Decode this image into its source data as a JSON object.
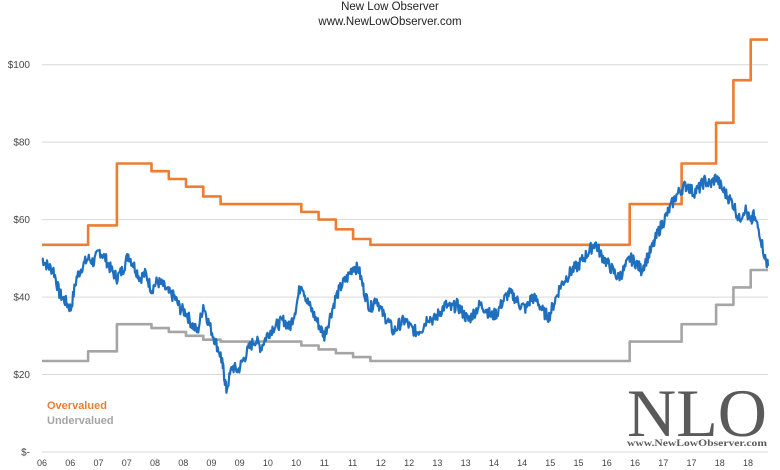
{
  "header": {
    "title": "New Low Observer",
    "subtitle": "www.NewLowObserver.com"
  },
  "watermark": {
    "logo_text": "NLO",
    "url_text": "www.NewLowObserver.com"
  },
  "colors": {
    "price": "#1f6fbf",
    "overvalued": "#ed7d31",
    "undervalued": "#a5a5a5",
    "grid": "#d9d9d9"
  },
  "chart_data": {
    "type": "line",
    "title": "New Low Observer",
    "subtitle": "www.NewLowObserver.com",
    "xlabel": "",
    "ylabel": "",
    "ylim": [
      0,
      110
    ],
    "yticks": [
      {
        "value": 0,
        "label": "$-"
      },
      {
        "value": 20,
        "label": "$20"
      },
      {
        "value": 40,
        "label": "$40"
      },
      {
        "value": 60,
        "label": "$60"
      },
      {
        "value": 80,
        "label": "$80"
      },
      {
        "value": 100,
        "label": "$100"
      }
    ],
    "xlim": [
      2006.0,
      2018.6
    ],
    "xtick_labels": [
      "06",
      "06",
      "07",
      "07",
      "08",
      "08",
      "09",
      "09",
      "10",
      "10",
      "11",
      "11",
      "12",
      "12",
      "13",
      "13",
      "14",
      "14",
      "15",
      "15",
      "16",
      "16",
      "17",
      "17",
      "18",
      "18"
    ],
    "grid": "horizontal",
    "legend_position": "bottom-left",
    "series": [
      {
        "name": "Overvalued",
        "style": "step",
        "points": [
          [
            2006.0,
            53.5
          ],
          [
            2006.8,
            58.5
          ],
          [
            2007.3,
            74.5
          ],
          [
            2007.9,
            72.5
          ],
          [
            2008.2,
            70.5
          ],
          [
            2008.5,
            68.5
          ],
          [
            2008.8,
            66.0
          ],
          [
            2009.1,
            64.0
          ],
          [
            2010.5,
            62.0
          ],
          [
            2010.8,
            60.0
          ],
          [
            2011.1,
            57.5
          ],
          [
            2011.4,
            55.0
          ],
          [
            2011.7,
            53.5
          ],
          [
            2014.5,
            53.5
          ],
          [
            2016.2,
            64.0
          ],
          [
            2017.1,
            74.5
          ],
          [
            2017.7,
            85.0
          ],
          [
            2018.0,
            96.0
          ],
          [
            2018.3,
            106.5
          ],
          [
            2018.6,
            106.5
          ]
        ]
      },
      {
        "name": "Undervalued",
        "style": "step",
        "points": [
          [
            2006.0,
            23.5
          ],
          [
            2006.8,
            26.0
          ],
          [
            2007.3,
            33.0
          ],
          [
            2007.9,
            32.0
          ],
          [
            2008.2,
            31.0
          ],
          [
            2008.5,
            30.0
          ],
          [
            2008.8,
            29.0
          ],
          [
            2009.1,
            28.5
          ],
          [
            2010.5,
            27.5
          ],
          [
            2010.8,
            26.5
          ],
          [
            2011.1,
            25.5
          ],
          [
            2011.4,
            24.5
          ],
          [
            2011.7,
            23.5
          ],
          [
            2014.5,
            23.5
          ],
          [
            2016.2,
            28.5
          ],
          [
            2017.1,
            33.0
          ],
          [
            2017.7,
            38.0
          ],
          [
            2018.0,
            42.5
          ],
          [
            2018.3,
            47.0
          ],
          [
            2018.6,
            47.0
          ]
        ]
      },
      {
        "name": "",
        "style": "line",
        "points": [
          [
            2006.0,
            50
          ],
          [
            2006.1,
            48
          ],
          [
            2006.2,
            47
          ],
          [
            2006.3,
            41
          ],
          [
            2006.4,
            39
          ],
          [
            2006.5,
            37
          ],
          [
            2006.6,
            45
          ],
          [
            2006.7,
            48
          ],
          [
            2006.8,
            50
          ],
          [
            2006.9,
            49
          ],
          [
            2007.0,
            52
          ],
          [
            2007.1,
            50
          ],
          [
            2007.2,
            47
          ],
          [
            2007.3,
            45
          ],
          [
            2007.4,
            47
          ],
          [
            2007.5,
            51
          ],
          [
            2007.6,
            48
          ],
          [
            2007.7,
            45
          ],
          [
            2007.8,
            46
          ],
          [
            2007.9,
            42
          ],
          [
            2008.0,
            44
          ],
          [
            2008.1,
            43
          ],
          [
            2008.2,
            41
          ],
          [
            2008.3,
            40
          ],
          [
            2008.4,
            37
          ],
          [
            2008.5,
            36
          ],
          [
            2008.6,
            33
          ],
          [
            2008.7,
            31
          ],
          [
            2008.8,
            38
          ],
          [
            2008.9,
            33
          ],
          [
            2009.0,
            29
          ],
          [
            2009.1,
            25
          ],
          [
            2009.15,
            21
          ],
          [
            2009.2,
            16
          ],
          [
            2009.3,
            22
          ],
          [
            2009.4,
            21
          ],
          [
            2009.5,
            24
          ],
          [
            2009.6,
            27
          ],
          [
            2009.7,
            29
          ],
          [
            2009.8,
            27
          ],
          [
            2009.9,
            30
          ],
          [
            2010.0,
            32
          ],
          [
            2010.1,
            33
          ],
          [
            2010.2,
            34
          ],
          [
            2010.3,
            32
          ],
          [
            2010.4,
            37
          ],
          [
            2010.5,
            44
          ],
          [
            2010.6,
            39
          ],
          [
            2010.7,
            36
          ],
          [
            2010.8,
            33
          ],
          [
            2010.9,
            30
          ],
          [
            2011.0,
            35
          ],
          [
            2011.1,
            40
          ],
          [
            2011.2,
            43
          ],
          [
            2011.3,
            45
          ],
          [
            2011.4,
            48
          ],
          [
            2011.5,
            47
          ],
          [
            2011.6,
            41
          ],
          [
            2011.7,
            37
          ],
          [
            2011.8,
            40
          ],
          [
            2011.9,
            36
          ],
          [
            2012.0,
            34
          ],
          [
            2012.1,
            31
          ],
          [
            2012.2,
            33
          ],
          [
            2012.3,
            34
          ],
          [
            2012.4,
            32
          ],
          [
            2012.5,
            31
          ],
          [
            2012.6,
            32
          ],
          [
            2012.7,
            35
          ],
          [
            2012.8,
            34
          ],
          [
            2012.9,
            36
          ],
          [
            2013.0,
            38
          ],
          [
            2013.1,
            37
          ],
          [
            2013.2,
            38
          ],
          [
            2013.3,
            36
          ],
          [
            2013.4,
            34
          ],
          [
            2013.5,
            36
          ],
          [
            2013.6,
            38
          ],
          [
            2013.7,
            37
          ],
          [
            2013.8,
            35
          ],
          [
            2013.9,
            36
          ],
          [
            2014.0,
            39
          ],
          [
            2014.1,
            41
          ],
          [
            2014.2,
            40
          ],
          [
            2014.3,
            38
          ],
          [
            2014.4,
            37
          ],
          [
            2014.5,
            40
          ],
          [
            2014.6,
            39
          ],
          [
            2014.7,
            36
          ],
          [
            2014.8,
            35
          ],
          [
            2014.9,
            39
          ],
          [
            2015.0,
            43
          ],
          [
            2015.1,
            45
          ],
          [
            2015.2,
            47
          ],
          [
            2015.3,
            48
          ],
          [
            2015.4,
            50
          ],
          [
            2015.5,
            52
          ],
          [
            2015.6,
            54
          ],
          [
            2015.7,
            51
          ],
          [
            2015.8,
            49
          ],
          [
            2015.9,
            47
          ],
          [
            2016.0,
            45
          ],
          [
            2016.1,
            47
          ],
          [
            2016.2,
            50
          ],
          [
            2016.3,
            49
          ],
          [
            2016.4,
            47
          ],
          [
            2016.5,
            50
          ],
          [
            2016.6,
            53
          ],
          [
            2016.7,
            57
          ],
          [
            2016.8,
            60
          ],
          [
            2016.9,
            63
          ],
          [
            2017.0,
            66
          ],
          [
            2017.1,
            68
          ],
          [
            2017.2,
            69
          ],
          [
            2017.3,
            67
          ],
          [
            2017.4,
            68
          ],
          [
            2017.5,
            70
          ],
          [
            2017.6,
            69
          ],
          [
            2017.7,
            71
          ],
          [
            2017.8,
            68
          ],
          [
            2017.9,
            66
          ],
          [
            2018.0,
            64
          ],
          [
            2018.1,
            60
          ],
          [
            2018.2,
            63
          ],
          [
            2018.3,
            59
          ],
          [
            2018.35,
            61
          ],
          [
            2018.45,
            57
          ],
          [
            2018.55,
            50
          ],
          [
            2018.6,
            48
          ]
        ]
      }
    ]
  }
}
